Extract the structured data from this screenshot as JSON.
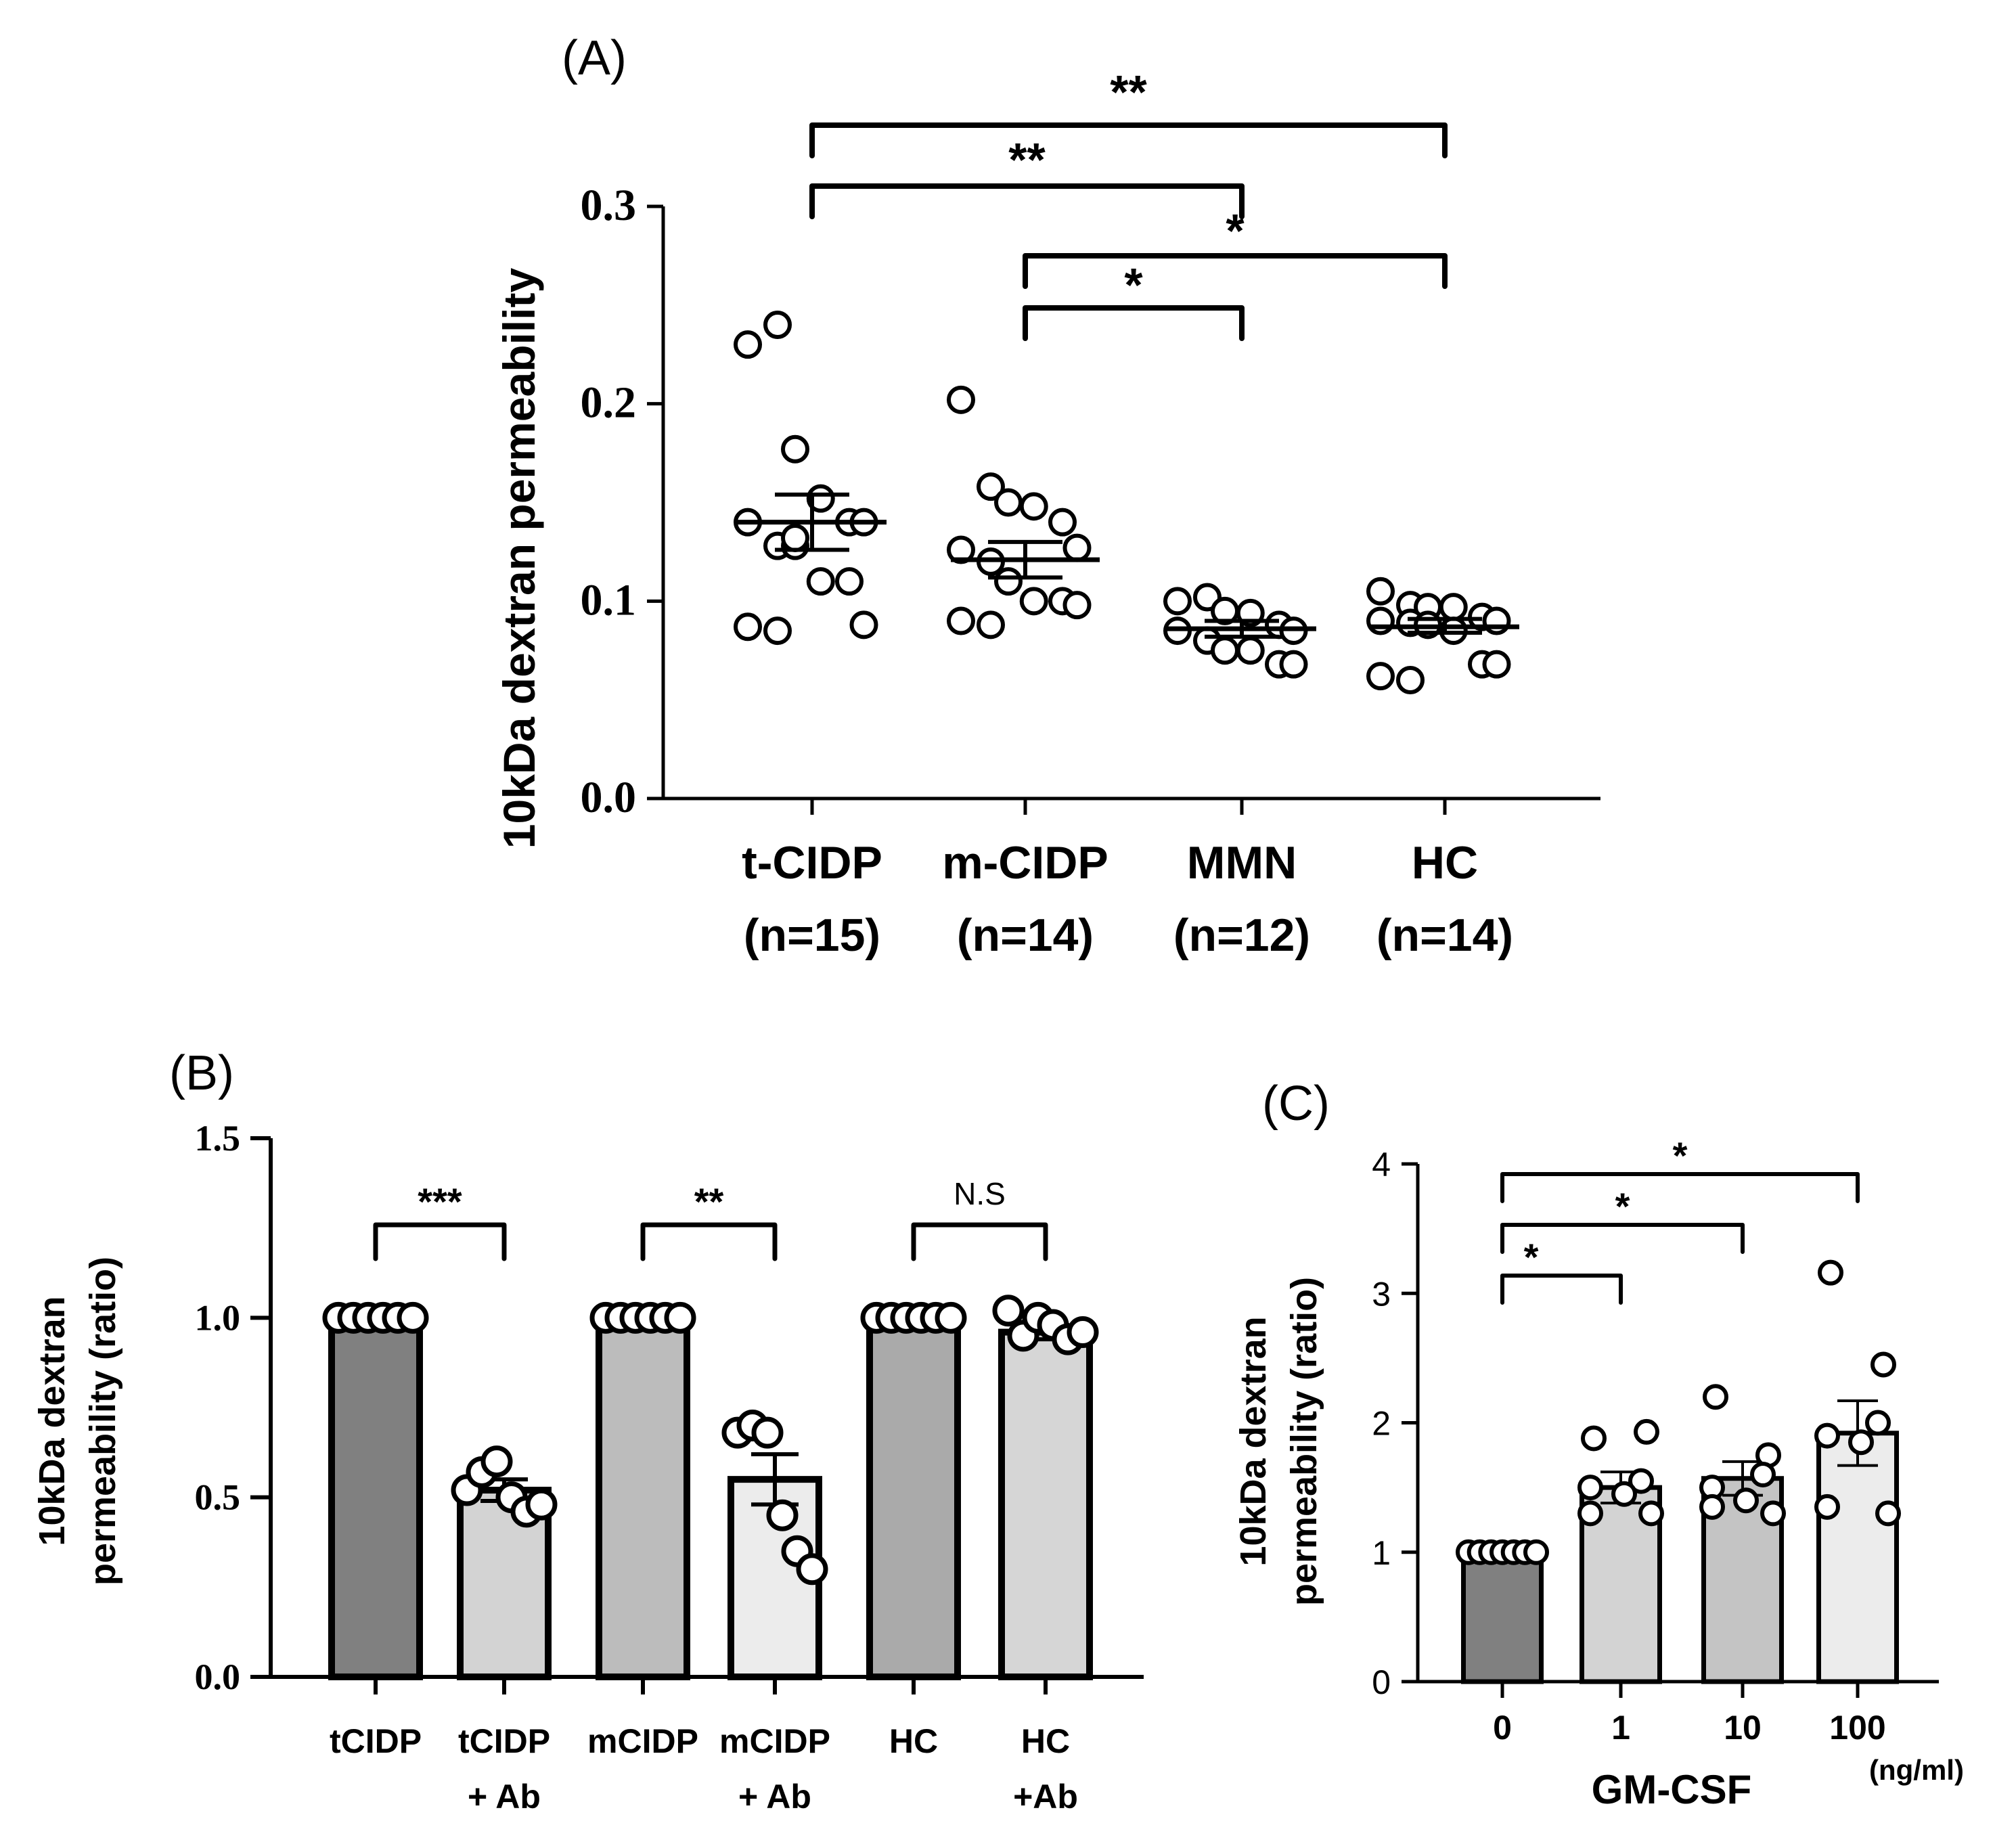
{
  "chart_data": [
    {
      "panel": "(A)",
      "type": "scatter",
      "ylabel": "10kDa dextran permeability",
      "ylim": [
        0,
        0.3
      ],
      "yticks": [
        "0.0",
        "0.1",
        "0.2",
        "0.3"
      ],
      "yticks_values": [
        0,
        0.1,
        0.2,
        0.3
      ],
      "groups": [
        {
          "name": "t-CIDP",
          "n": "(n=15)",
          "mean": 0.14,
          "sem_low": 0.126,
          "sem_high": 0.154,
          "points": [
            0.23,
            0.24,
            0.177,
            0.152,
            0.14,
            0.14,
            0.14,
            0.128,
            0.128,
            0.11,
            0.11,
            0.088,
            0.087,
            0.085,
            0.132
          ]
        },
        {
          "name": "m-CIDP",
          "n": "(n=14)",
          "mean": 0.121,
          "sem_low": 0.112,
          "sem_high": 0.13,
          "points": [
            0.202,
            0.158,
            0.15,
            0.148,
            0.14,
            0.127,
            0.126,
            0.12,
            0.11,
            0.1,
            0.1,
            0.098,
            0.09,
            0.088
          ]
        },
        {
          "name": "MMN",
          "n": "(n=12)",
          "mean": 0.086,
          "sem_low": 0.082,
          "sem_high": 0.09,
          "points": [
            0.1,
            0.102,
            0.095,
            0.094,
            0.088,
            0.085,
            0.085,
            0.08,
            0.075,
            0.075,
            0.068,
            0.068
          ]
        },
        {
          "name": "HC",
          "n": "(n=14)",
          "mean": 0.087,
          "sem_low": 0.084,
          "sem_high": 0.091,
          "points": [
            0.105,
            0.098,
            0.097,
            0.097,
            0.092,
            0.09,
            0.09,
            0.089,
            0.088,
            0.085,
            0.068,
            0.068,
            0.062,
            0.06
          ]
        }
      ],
      "comparisons": [
        {
          "from": 0,
          "to": 3,
          "label": "**"
        },
        {
          "from": 0,
          "to": 2,
          "label": "**"
        },
        {
          "from": 1,
          "to": 3,
          "label": "*"
        },
        {
          "from": 1,
          "to": 2,
          "label": "*"
        }
      ]
    },
    {
      "panel": "(B)",
      "type": "bar",
      "ylabel_line1": "10kDa dextran",
      "ylabel_line2": "permeability (ratio)",
      "ylim": [
        0,
        1.5
      ],
      "yticks": [
        "0.0",
        "0.5",
        "1.0",
        "1.5"
      ],
      "yticks_values": [
        0,
        0.5,
        1.0,
        1.5
      ],
      "categories": [
        {
          "line1": "tCIDP",
          "line2": ""
        },
        {
          "line1": "tCIDP",
          "line2": "+ Ab"
        },
        {
          "line1": "mCIDP",
          "line2": ""
        },
        {
          "line1": "mCIDP",
          "line2": "+ Ab"
        },
        {
          "line1": "HC",
          "line2": ""
        },
        {
          "line1": "HC",
          "line2": "+Ab"
        }
      ],
      "values": [
        1.0,
        0.52,
        1.0,
        0.55,
        1.0,
        0.96
      ],
      "sem": [
        0,
        0.03,
        0,
        0.07,
        0,
        0.02
      ],
      "bar_colors": [
        "#808080",
        "#d3d3d3",
        "#bcbcbc",
        "#ececec",
        "#aaaaaa",
        "#d6d6d6"
      ],
      "points": [
        [
          1,
          1,
          1,
          1,
          1,
          1
        ],
        [
          0.52,
          0.57,
          0.6,
          0.5,
          0.46,
          0.48
        ],
        [
          1,
          1,
          1,
          1,
          1,
          1
        ],
        [
          0.68,
          0.7,
          0.68,
          0.45,
          0.35,
          0.3
        ],
        [
          1,
          1,
          1,
          1,
          1,
          1
        ],
        [
          1.02,
          0.95,
          1.0,
          0.98,
          0.94,
          0.96
        ]
      ],
      "comparisons": [
        {
          "from": 0,
          "to": 1,
          "label": "***"
        },
        {
          "from": 2,
          "to": 3,
          "label": "**"
        },
        {
          "from": 4,
          "to": 5,
          "label": "N.S"
        }
      ]
    },
    {
      "panel": "(C)",
      "type": "bar",
      "ylabel_line1": "10kDa dextran",
      "ylabel_line2": "permeability (ratio)",
      "xlabel": "GM-CSF",
      "xunit": "(ng/ml)",
      "ylim": [
        0,
        4
      ],
      "yticks": [
        "0",
        "1",
        "2",
        "3",
        "4"
      ],
      "yticks_values": [
        0,
        1,
        2,
        3,
        4
      ],
      "categories": [
        "0",
        "1",
        "10",
        "100"
      ],
      "values": [
        1.0,
        1.5,
        1.57,
        1.92
      ],
      "sem": [
        0,
        0.12,
        0.13,
        0.25
      ],
      "bar_colors": [
        "#808080",
        "#d3d3d3",
        "#c4c4c4",
        "#ececec"
      ],
      "points": [
        [
          1,
          1,
          1,
          1,
          1,
          1,
          1
        ],
        [
          1.88,
          1.93,
          1.55,
          1.5,
          1.45,
          1.3,
          1.3
        ],
        [
          2.2,
          1.75,
          1.6,
          1.5,
          1.4,
          1.35,
          1.3
        ],
        [
          3.16,
          2.45,
          2.0,
          1.9,
          1.85,
          1.35,
          1.3
        ]
      ],
      "comparisons": [
        {
          "from": 0,
          "to": 1,
          "label": "*"
        },
        {
          "from": 0,
          "to": 2,
          "label": "*"
        },
        {
          "from": 0,
          "to": 3,
          "label": "*"
        }
      ]
    }
  ]
}
